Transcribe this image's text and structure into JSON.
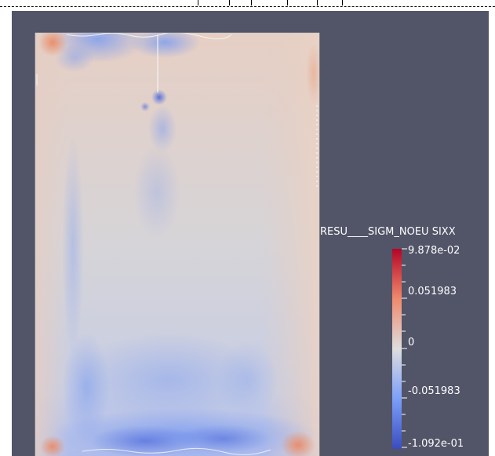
{
  "viewer": {
    "background_color": "#525468",
    "field_title": "RESU____SIGM_NOEU SIXX"
  },
  "colorbar": {
    "max_label": "9.878e-02",
    "mid_high_label": "0.051983",
    "zero_label": "0",
    "mid_low_label": "-0.051983",
    "min_label": "-1.092e-01",
    "max_value": 0.09878,
    "min_value": -0.1092,
    "colors": {
      "max": "#b40426",
      "high": "#f08a6c",
      "zero": "#dddddd",
      "low": "#7b9ff9",
      "min": "#3b4cc0"
    }
  }
}
